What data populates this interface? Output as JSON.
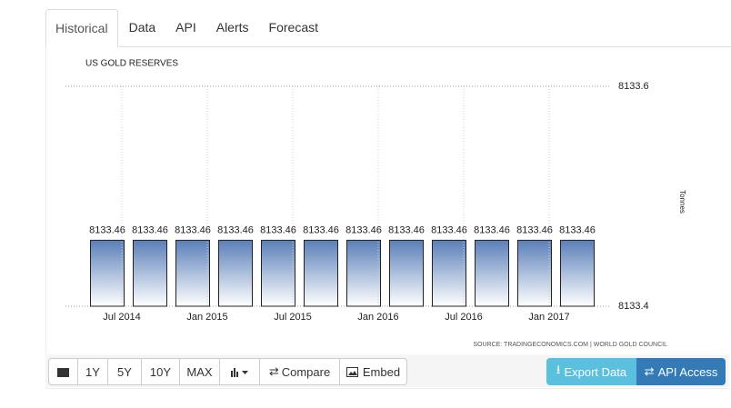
{
  "tabs": [
    "Historical",
    "Data",
    "API",
    "Alerts",
    "Forecast"
  ],
  "chart_data": {
    "type": "bar",
    "title": "US GOLD RESERVES",
    "y_label": "Tonnes",
    "categories": [
      null,
      "Jul 2014",
      null,
      "Jan 2015",
      null,
      "Jul 2015",
      null,
      "Jan 2016",
      null,
      "Jul 2016",
      null,
      "Jan 2017"
    ],
    "values": [
      8133.46,
      8133.46,
      8133.46,
      8133.46,
      8133.46,
      8133.46,
      8133.46,
      8133.46,
      8133.46,
      8133.46,
      8133.46,
      8133.46
    ],
    "color": "#5a7fb8",
    "ylim": [
      8133.4,
      8133.6
    ],
    "yticks": [
      8133.4,
      8133.6
    ],
    "grid": true,
    "source": "SOURCE: TRADINGECONOMICS.COM | WORLD GOLD COUNCIL"
  },
  "toolbar": {
    "ranges": [
      "1Y",
      "5Y",
      "10Y",
      "MAX"
    ],
    "compare": "Compare",
    "embed": "Embed",
    "export": "Export Data",
    "api": "API Access"
  }
}
